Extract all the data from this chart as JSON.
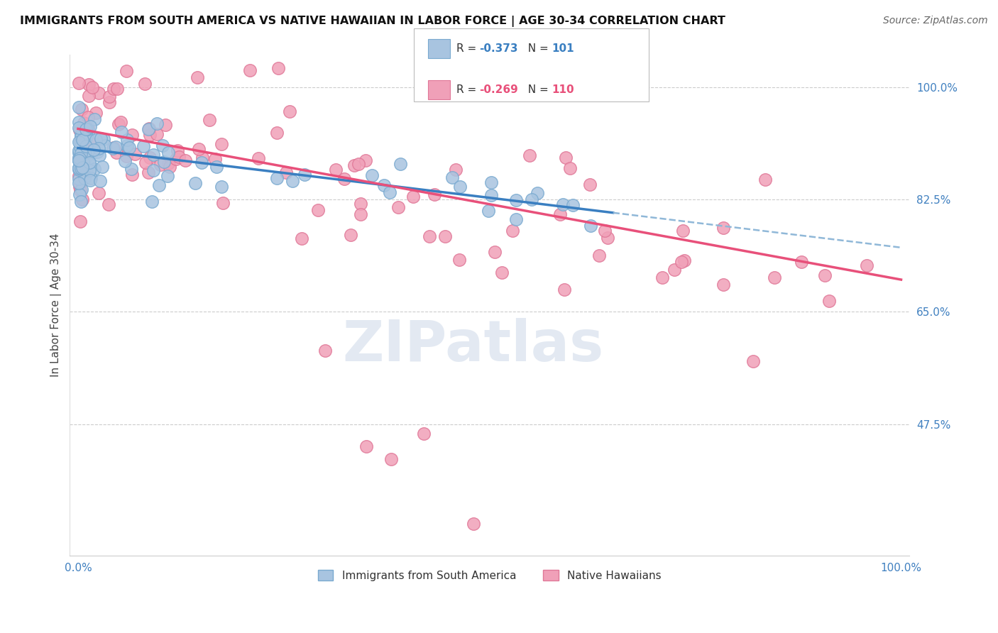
{
  "title": "IMMIGRANTS FROM SOUTH AMERICA VS NATIVE HAWAIIAN IN LABOR FORCE | AGE 30-34 CORRELATION CHART",
  "source": "Source: ZipAtlas.com",
  "ylabel": "In Labor Force | Age 30-34",
  "R_blue": -0.373,
  "N_blue": 101,
  "R_pink": -0.269,
  "N_pink": 110,
  "legend_label_blue": "Immigrants from South America",
  "legend_label_pink": "Native Hawaiians",
  "blue_color": "#a8c4e0",
  "pink_color": "#f0a0b8",
  "blue_edge_color": "#7aaad0",
  "pink_edge_color": "#e07898",
  "blue_line_color": "#3a7fc1",
  "pink_line_color": "#e8507a",
  "dashed_line_color": "#90b8d8",
  "background_color": "#ffffff",
  "watermark": "ZIPatlas",
  "grid_color": "#cccccc",
  "ytick_color": "#4080c0",
  "xtick_color": "#4080c0",
  "ylim_low": 0.27,
  "ylim_high": 1.05,
  "blue_intercept": 0.905,
  "blue_slope": -0.155,
  "pink_intercept": 0.935,
  "pink_slope": -0.235
}
